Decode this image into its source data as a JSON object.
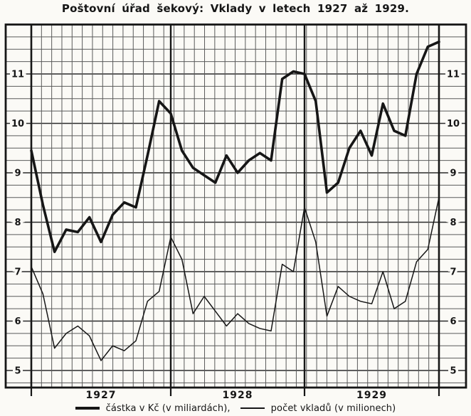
{
  "title": "Poštovní úřad šekový: Vklady v letech 1927 až 1929.",
  "colors": {
    "ink": "#161616",
    "paper": "#fbfaf6",
    "grid_minor": "#5a5a5a",
    "grid_major": "#2a2a2a"
  },
  "y_axis": {
    "labels": [
      11,
      10,
      9,
      8,
      7,
      6,
      5
    ],
    "shown_on": "both sides"
  },
  "x_axis": {
    "year_labels": [
      "1927",
      "1928",
      "1929"
    ]
  },
  "legend": {
    "items": [
      {
        "series": "amount",
        "weight": "thick",
        "label": "částka v Kč (v miliardách),"
      },
      {
        "series": "count",
        "weight": "thin",
        "label": "počet vkladů (v milionech)"
      }
    ]
  },
  "chart_data": {
    "type": "line",
    "title": "Poštovní úřad šekový: Vklady v letech 1927 až 1929.",
    "x_structure": "3 years (1927, 1928, 1929), 12 monthly points per year, line ends at right border",
    "points_per_year": 12,
    "years": [
      "1927",
      "1928",
      "1929"
    ],
    "y_ticks": [
      5,
      6,
      7,
      8,
      9,
      10,
      11
    ],
    "ylim": [
      4.65,
      12.0
    ],
    "grid": "fine graph paper, quarter-unit rows, heavy vertical rules at year boundaries",
    "legend_position": "bottom",
    "series": [
      {
        "name": "částka v Kč (v miliardách)",
        "style": "thick",
        "values": [
          9.45,
          8.35,
          7.4,
          7.85,
          7.8,
          8.1,
          7.6,
          8.15,
          8.4,
          8.3,
          9.35,
          10.45,
          10.2,
          9.45,
          9.1,
          8.95,
          8.8,
          9.35,
          9.0,
          9.25,
          9.4,
          9.25,
          10.9,
          11.05,
          11.0,
          10.45,
          8.6,
          8.8,
          9.5,
          9.85,
          9.35,
          10.4,
          9.85,
          9.75,
          11.0,
          11.55
        ],
        "end_value": 11.65
      },
      {
        "name": "počet vkladů (v milionech)",
        "style": "thin",
        "values": [
          7.1,
          6.55,
          5.45,
          5.75,
          5.9,
          5.7,
          5.2,
          5.5,
          5.4,
          5.6,
          6.4,
          6.6,
          7.7,
          7.25,
          6.15,
          6.5,
          6.2,
          5.9,
          6.15,
          5.95,
          5.85,
          5.8,
          7.15,
          7.0,
          8.3,
          7.6,
          6.1,
          6.7,
          6.5,
          6.4,
          6.35,
          7.0,
          6.25,
          6.4,
          7.2,
          7.45
        ],
        "end_value": 8.5
      }
    ]
  }
}
